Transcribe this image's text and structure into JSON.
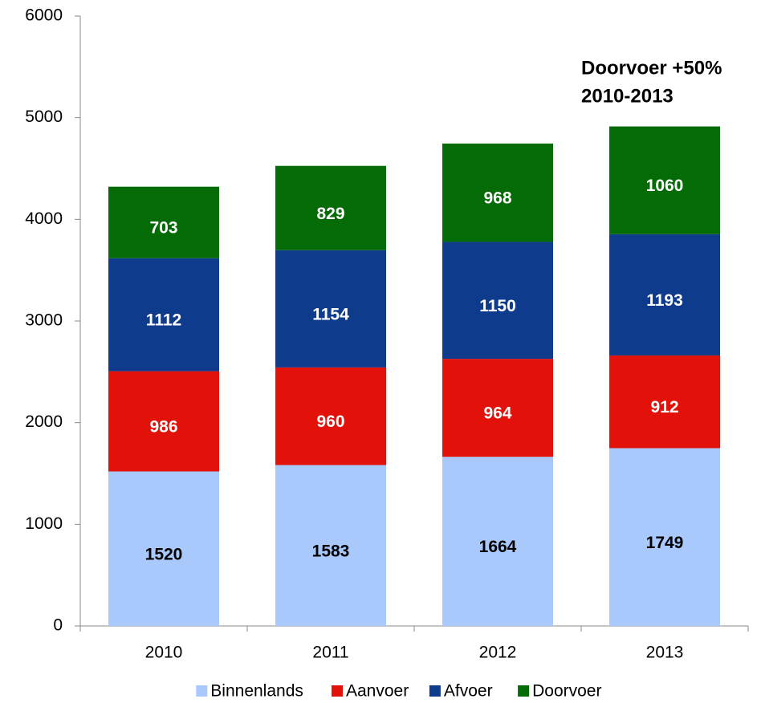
{
  "chart_data": {
    "type": "stacked_bar",
    "categories": [
      "2010",
      "2011",
      "2012",
      "2013"
    ],
    "series": [
      {
        "name": "Binnenlands",
        "color": "#a9c8fb",
        "label_color": "#000000",
        "values": [
          1520,
          1583,
          1664,
          1749
        ]
      },
      {
        "name": "Aanvoer",
        "color": "#e2120b",
        "label_color": "#ffffff",
        "values": [
          986,
          960,
          964,
          912
        ]
      },
      {
        "name": "Afvoer",
        "color": "#0e3b8c",
        "label_color": "#ffffff",
        "values": [
          1112,
          1154,
          1150,
          1193
        ]
      },
      {
        "name": "Doorvoer",
        "color": "#056b07",
        "label_color": "#ffffff",
        "values": [
          703,
          829,
          968,
          1060
        ]
      }
    ],
    "ylim": [
      0,
      6000
    ],
    "yticks": [
      0,
      1000,
      2000,
      3000,
      4000,
      5000,
      6000
    ],
    "annotation": [
      "Doorvoer +50%",
      "2010-2013"
    ],
    "legend": "bottom"
  }
}
